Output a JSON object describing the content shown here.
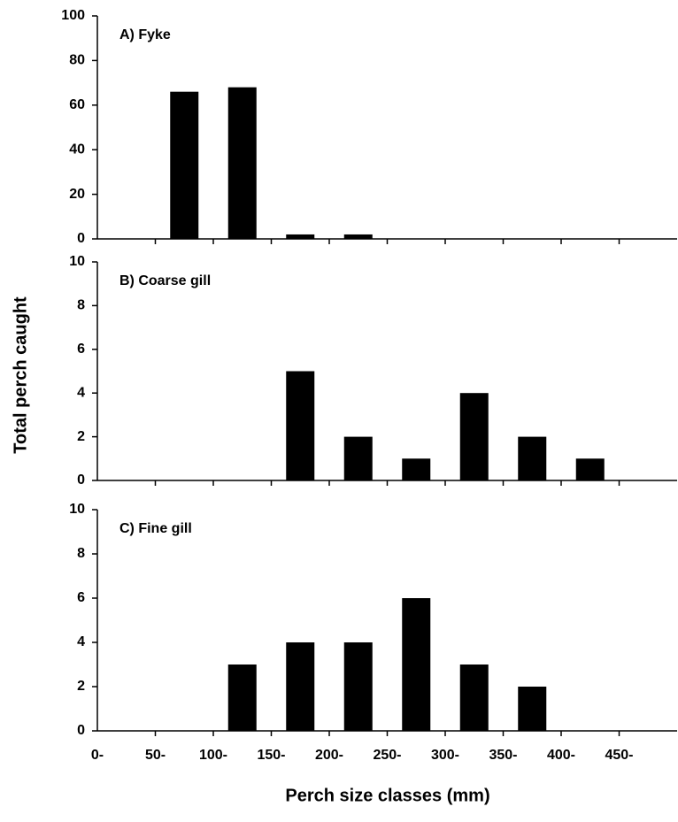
{
  "chart_data": [
    {
      "type": "bar",
      "title": "A) Fyke",
      "values": [
        0,
        66,
        68,
        2,
        2,
        0,
        0,
        0,
        0,
        0
      ],
      "color": "#000000",
      "ylim": [
        0,
        100
      ],
      "yticks": [
        0,
        20,
        40,
        60,
        80,
        100
      ]
    },
    {
      "type": "bar",
      "title": "B) Coarse gill",
      "y_label": "Total  perch  caught",
      "values": [
        0,
        0,
        0,
        5,
        2,
        1,
        4,
        2,
        1,
        0
      ],
      "color": "#000000",
      "ylim": [
        0,
        10
      ],
      "yticks": [
        0,
        2,
        4,
        6,
        8,
        10
      ]
    },
    {
      "type": "bar",
      "title": "C) Fine gill",
      "x_label": "Perch size classes (mm)",
      "categories": [
        "0-",
        "50-",
        "100-",
        "150-",
        "200-",
        "250-",
        "300-",
        "350-",
        "400-",
        "450-"
      ],
      "values": [
        0,
        0,
        3,
        4,
        4,
        6,
        3,
        2,
        0,
        0
      ],
      "color": "#000000",
      "ylim": [
        0,
        10
      ],
      "yticks": [
        0,
        2,
        4,
        6,
        8,
        10
      ]
    }
  ]
}
